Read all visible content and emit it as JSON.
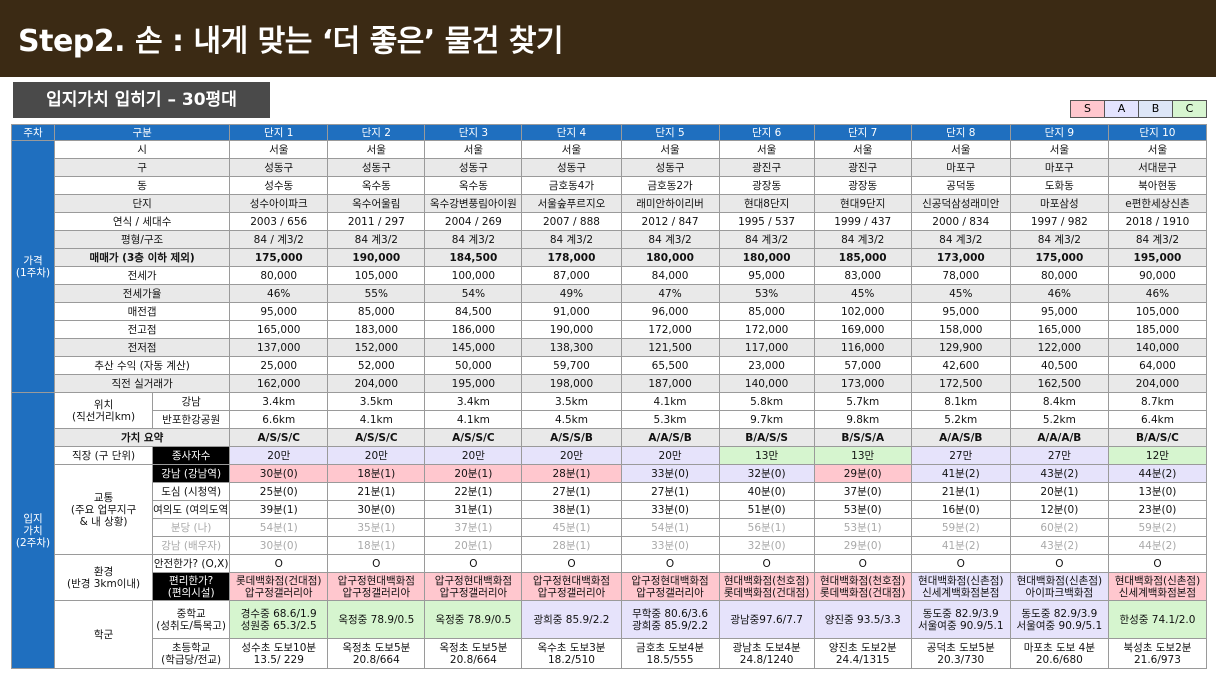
{
  "title": "Step2. 손 : 내게 맞는 ‘더 좋은’ 물건 찾기",
  "subtitle": "입지가치 입히기 – 30평대",
  "legend": [
    "S",
    "A",
    "B",
    "C"
  ],
  "colors": {
    "banner": "#3b2a14",
    "section": "#1f6fbf",
    "S": "#ffc7ce",
    "A": "#e6e3fb",
    "B": "#dfe7f8",
    "C": "#d6f5cf"
  },
  "table": {
    "head": {
      "c1": "주차",
      "c2": "구분",
      "cols": [
        "단지 1",
        "단지 2",
        "단지 3",
        "단지 4",
        "단지 5",
        "단지 6",
        "단지 7",
        "단지 8",
        "단지 9",
        "단지 10"
      ]
    },
    "sec_price": "가격\n(1주차)",
    "sec_loc": "입지\n가치\n(2주차)",
    "price_rows": [
      {
        "label": "시",
        "vals": [
          "서울",
          "서울",
          "서울",
          "서울",
          "서울",
          "서울",
          "서울",
          "서울",
          "서울",
          "서울"
        ]
      },
      {
        "label": "구",
        "vals": [
          "성동구",
          "성동구",
          "성동구",
          "성동구",
          "성동구",
          "광진구",
          "광진구",
          "마포구",
          "마포구",
          "서대문구"
        ]
      },
      {
        "label": "동",
        "vals": [
          "성수동",
          "옥수동",
          "옥수동",
          "금호동4가",
          "금호동2가",
          "광장동",
          "광장동",
          "공덕동",
          "도화동",
          "북아현동"
        ]
      },
      {
        "label": "단지",
        "vals": [
          "성수아이파크",
          "옥수어울림",
          "옥수강변풍림아이원",
          "서울숲푸르지오",
          "래미안하이리버",
          "현대8단지",
          "현대9단지",
          "신공덕삼성래미안",
          "마포삼성",
          "e편한세상신촌"
        ]
      },
      {
        "label": "연식 / 세대수",
        "vals": [
          "2003 / 656",
          "2011 / 297",
          "2004 / 269",
          "2007 / 888",
          "2012 / 847",
          "1995 / 537",
          "1999 / 437",
          "2000 / 834",
          "1997 / 982",
          "2018 / 1910"
        ]
      },
      {
        "label": "평형/구조",
        "vals": [
          "84 / 계3/2",
          "84 계3/2",
          "84 계3/2",
          "84 계3/2",
          "84 계3/2",
          "84 계3/2",
          "84 계3/2",
          "84 계3/2",
          "84 계3/2",
          "84 계3/2"
        ]
      },
      {
        "label": "매매가 (3층 이하 제외)",
        "vals": [
          "175,000",
          "190,000",
          "184,500",
          "178,000",
          "180,000",
          "180,000",
          "185,000",
          "173,000",
          "175,000",
          "195,000"
        ]
      },
      {
        "label": "전세가",
        "vals": [
          "80,000",
          "105,000",
          "100,000",
          "87,000",
          "84,000",
          "95,000",
          "83,000",
          "78,000",
          "80,000",
          "90,000"
        ]
      },
      {
        "label": "전세가율",
        "vals": [
          "46%",
          "55%",
          "54%",
          "49%",
          "47%",
          "53%",
          "45%",
          "45%",
          "46%",
          "46%"
        ]
      },
      {
        "label": "매전갭",
        "vals": [
          "95,000",
          "85,000",
          "84,500",
          "91,000",
          "96,000",
          "85,000",
          "102,000",
          "95,000",
          "95,000",
          "105,000"
        ]
      },
      {
        "label": "전고점",
        "vals": [
          "165,000",
          "183,000",
          "186,000",
          "190,000",
          "172,000",
          "172,000",
          "169,000",
          "158,000",
          "165,000",
          "185,000"
        ]
      },
      {
        "label": "전저점",
        "vals": [
          "137,000",
          "152,000",
          "145,000",
          "138,300",
          "121,500",
          "117,000",
          "116,000",
          "129,900",
          "122,000",
          "140,000"
        ]
      },
      {
        "label": "추산 수익 (자동 계산)",
        "vals": [
          "25,000",
          "52,000",
          "50,000",
          "59,700",
          "65,500",
          "23,000",
          "57,000",
          "42,600",
          "40,500",
          "64,000"
        ]
      },
      {
        "label": "직전 실거래가",
        "vals": [
          "162,000",
          "204,000",
          "195,000",
          "198,000",
          "187,000",
          "140,000",
          "173,000",
          "172,500",
          "162,500",
          "204,000"
        ]
      }
    ],
    "loc": {
      "pos_label": "위치\n(직선거리km)",
      "gangnam": {
        "label": "강남",
        "vals": [
          "3.4km",
          "3.5km",
          "3.4km",
          "3.5km",
          "4.1km",
          "5.8km",
          "5.7km",
          "8.1km",
          "8.4km",
          "8.7km"
        ]
      },
      "hangang": {
        "label": "반포한강공원",
        "vals": [
          "6.6km",
          "4.1km",
          "4.1km",
          "4.5km",
          "5.3km",
          "9.7km",
          "9.8km",
          "5.2km",
          "5.2km",
          "6.4km"
        ]
      },
      "summary": {
        "label": "가치 요약",
        "vals": [
          "A/S/S/C",
          "A/S/S/C",
          "A/S/S/C",
          "A/S/S/B",
          "A/A/S/B",
          "B/A/S/S",
          "B/S/S/A",
          "A/A/S/B",
          "A/A/A/B",
          "B/A/S/C"
        ]
      },
      "job": {
        "label1": "직장 (구 단위)",
        "label2": "종사자수",
        "vals": [
          "20만",
          "20만",
          "20만",
          "20만",
          "20만",
          "13만",
          "13만",
          "27만",
          "27만",
          "12만"
        ]
      },
      "traffic_label": "교통\n(주요 업무지구\n& 내 상황)",
      "t1": {
        "label": "강남 (강남역)",
        "vals": [
          "30분(0)",
          "18분(1)",
          "20분(1)",
          "28분(1)",
          "33분(0)",
          "32분(0)",
          "29분(0)",
          "41분(2)",
          "43분(2)",
          "44분(2)"
        ]
      },
      "t2": {
        "label": "도심 (시청역)",
        "vals": [
          "25분(0)",
          "21분(1)",
          "22분(1)",
          "27분(1)",
          "27분(1)",
          "40분(0)",
          "37분(0)",
          "21분(1)",
          "20분(1)",
          "13분(0)"
        ]
      },
      "t3": {
        "label": "여의도 (여의도역)",
        "vals": [
          "39분(1)",
          "30분(0)",
          "31분(1)",
          "38분(1)",
          "33분(0)",
          "51분(0)",
          "53분(0)",
          "16분(0)",
          "12분(0)",
          "23분(0)"
        ]
      },
      "t4": {
        "label": "분당 (나)",
        "vals": [
          "54분(1)",
          "35분(1)",
          "37분(1)",
          "45분(1)",
          "54분(1)",
          "56분(1)",
          "53분(1)",
          "59분(2)",
          "60분(2)",
          "59분(2)"
        ]
      },
      "t5": {
        "label": "강남 (배우자)",
        "vals": [
          "30분(0)",
          "18분(1)",
          "20분(1)",
          "28분(1)",
          "33분(0)",
          "32분(0)",
          "29분(0)",
          "41분(2)",
          "43분(2)",
          "44분(2)"
        ]
      },
      "env_label": "환경\n(반경 3km이내)",
      "safe": {
        "label": "안전한가? (O,X)",
        "vals": [
          "O",
          "O",
          "O",
          "O",
          "O",
          "O",
          "O",
          "O",
          "O",
          "O"
        ]
      },
      "conv": {
        "label": "편리한가?\n(편의시설)",
        "vals": [
          "롯데백화점(건대점)\n압구정갤러리아",
          "압구정현대백화점\n압구정갤러리아",
          "압구정현대백화점\n압구정갤러리아",
          "압구정현대백화점\n압구정갤러리아",
          "압구정현대백화점\n압구정갤러리아",
          "현대백화점(천호점)\n롯데백화점(건대점)",
          "현대백화점(천호점)\n롯데백화점(건대점)",
          "현대백화점(신촌점)\n신세계백화점본점",
          "현대백화점(신촌점)\n아이파크백화점",
          "현대백화점(신촌점)\n신세계백화점본점"
        ]
      },
      "school_label": "학군",
      "middle": {
        "label": "중학교\n(성취도/특목고)",
        "vals": [
          "경수중 68.6/1.9\n성원중 65.3/2.5",
          "옥정중 78.9/0.5",
          "옥정중 78.9/0.5",
          "광희중 85.9/2.2",
          "무학중 80.6/3.6\n광희중 85.9/2.2",
          "광남중97.6/7.7",
          "양진중 93.5/3.3",
          "동도중 82.9/3.9\n서울여중 90.9/5.1",
          "동도중 82.9/3.9\n서울여중 90.9/5.1",
          "한성중 74.1/2.0"
        ]
      },
      "elem": {
        "label": "초등학교\n(학급당/전교)",
        "vals": [
          "성수초 도보10분\n13.5/ 229",
          "옥정초 도보5분\n20.8/664",
          "옥정초 도보5분\n20.8/664",
          "옥수초 도보3분\n18.2/510",
          "금호초 도보4분\n18.5/555",
          "광남초 도보4분\n24.8/1240",
          "양진초 도보2분\n24.4/1315",
          "공덕초 도보5분\n20.3/730",
          "마포초 도보 4분\n20.6/680",
          "북성초 도보2분\n21.6/973"
        ]
      }
    }
  }
}
